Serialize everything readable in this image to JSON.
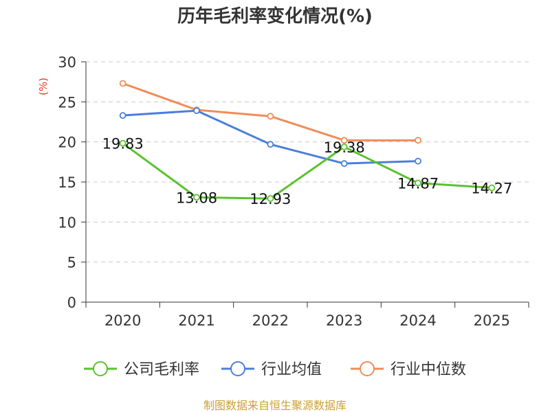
{
  "chart_data": {
    "type": "line",
    "title": "历年毛利率变化情况(%)",
    "ylabel": "(%)",
    "xlabel": "",
    "categories": [
      "2020",
      "2021",
      "2022",
      "2023",
      "2024",
      "2025"
    ],
    "ylim": [
      0,
      30
    ],
    "yticks": [
      0,
      5,
      10,
      15,
      20,
      25,
      30
    ],
    "grid": true,
    "legend_position": "bottom",
    "series": [
      {
        "name": "公司毛利率",
        "color": "#5ac22d",
        "values": [
          19.83,
          13.08,
          12.93,
          19.38,
          14.87,
          14.27
        ],
        "labels": [
          "19.83",
          "13.08",
          "12.93",
          "19.38",
          "14.87",
          "14.27"
        ]
      },
      {
        "name": "行业均值",
        "color": "#4a7fd9",
        "values": [
          23.3,
          23.9,
          19.7,
          17.3,
          17.6,
          null
        ]
      },
      {
        "name": "行业中位数",
        "color": "#f08c57",
        "values": [
          27.3,
          24.0,
          23.2,
          20.2,
          20.2,
          null
        ]
      }
    ]
  },
  "source_text": "制图数据来自恒生聚源数据库"
}
